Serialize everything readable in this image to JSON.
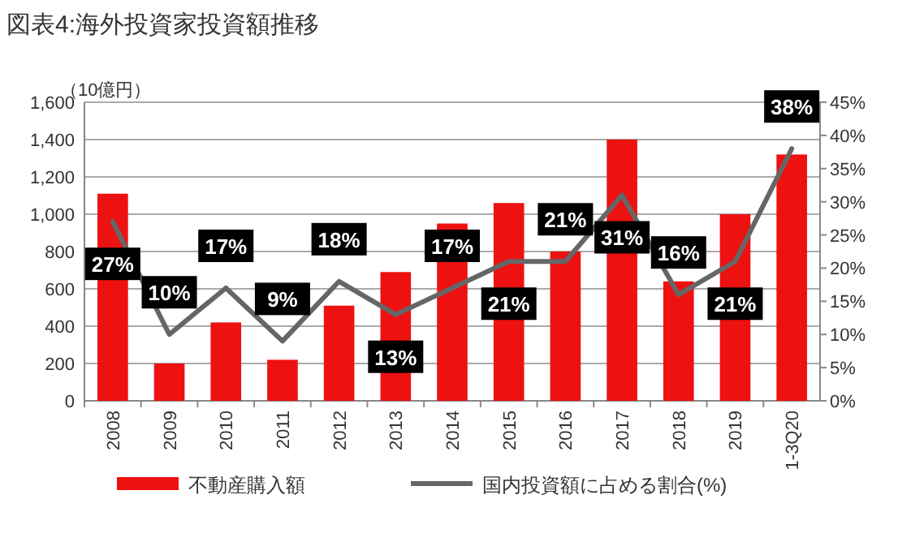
{
  "chart_data": {
    "type": "bar",
    "title": "図表4:海外投資家投資額推移",
    "ylabel": "（10億円）",
    "categories": [
      "2008",
      "2009",
      "2010",
      "2011",
      "2012",
      "2013",
      "2014",
      "2015",
      "2016",
      "2017",
      "2018",
      "2019",
      "1-3Q20"
    ],
    "series": [
      {
        "name": "不動産購入額",
        "color": "#ee1111",
        "values": [
          1110,
          200,
          420,
          220,
          510,
          690,
          950,
          1060,
          800,
          1400,
          640,
          1000,
          1320
        ]
      },
      {
        "name": "国内投資額に占める割合(%)",
        "type": "line",
        "axis": "y2",
        "color": "#666666",
        "values": [
          27,
          10,
          17,
          9,
          18,
          13,
          17,
          21,
          21,
          31,
          16,
          21,
          38
        ],
        "value_labels": [
          "27%",
          "10%",
          "17%",
          "9%",
          "18%",
          "13%",
          "17%",
          "21%",
          "21%",
          "31%",
          "16%",
          "21%",
          "38%"
        ]
      }
    ],
    "ylim": [
      0,
      1600
    ],
    "yticks": [
      {
        "value": 0,
        "label": "0"
      },
      {
        "value": 200,
        "label": "200"
      },
      {
        "value": 400,
        "label": "400"
      },
      {
        "value": 600,
        "label": "600"
      },
      {
        "value": 800,
        "label": "800"
      },
      {
        "value": 1000,
        "label": "1,000"
      },
      {
        "value": 1200,
        "label": "1,200"
      },
      {
        "value": 1400,
        "label": "1,400"
      },
      {
        "value": 1600,
        "label": "1,600"
      }
    ],
    "y2lim": [
      0,
      45
    ],
    "y2ticks": [
      {
        "value": 0,
        "label": "0%"
      },
      {
        "value": 5,
        "label": "5%"
      },
      {
        "value": 10,
        "label": "10%"
      },
      {
        "value": 15,
        "label": "15%"
      },
      {
        "value": 20,
        "label": "20%"
      },
      {
        "value": 25,
        "label": "25%"
      },
      {
        "value": 30,
        "label": "30%"
      },
      {
        "value": 35,
        "label": "35%"
      },
      {
        "value": 40,
        "label": "40%"
      },
      {
        "value": 45,
        "label": "45%"
      }
    ],
    "grid": "y",
    "legend": "bottom"
  }
}
